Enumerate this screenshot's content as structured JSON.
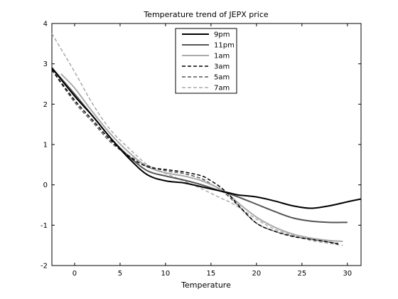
{
  "chart_data": {
    "type": "line",
    "title": "Temperature trend of JEPX price",
    "xlabel": "Temperature",
    "ylabel": "",
    "xlim": [
      -2.5,
      31.5
    ],
    "ylim": [
      -2,
      4
    ],
    "xticks": [
      0,
      5,
      10,
      15,
      20,
      25,
      30
    ],
    "yticks": [
      -2,
      -1,
      0,
      1,
      2,
      3,
      4
    ],
    "grid": false,
    "legend_position": "top-center",
    "series": [
      {
        "name": "9pm",
        "color": "#000000",
        "dash": "solid",
        "width": 2,
        "x": [
          -2.5,
          0,
          2,
          4,
          6,
          8,
          10,
          12,
          14,
          16,
          17,
          18,
          20,
          22,
          24,
          26,
          28,
          30,
          31.5
        ],
        "y": [
          2.9,
          2.2,
          1.7,
          1.15,
          0.65,
          0.25,
          0.1,
          0.05,
          -0.05,
          -0.15,
          -0.2,
          -0.25,
          -0.3,
          -0.4,
          -0.52,
          -0.58,
          -0.52,
          -0.42,
          -0.35
        ]
      },
      {
        "name": "11pm",
        "color": "#555555",
        "dash": "solid",
        "width": 2,
        "x": [
          -2.5,
          0,
          2,
          4,
          6,
          8,
          10,
          12,
          14,
          16,
          17,
          18,
          20,
          22,
          24,
          26,
          28,
          30
        ],
        "y": [
          2.9,
          2.25,
          1.7,
          1.15,
          0.7,
          0.35,
          0.22,
          0.12,
          0.0,
          -0.15,
          -0.22,
          -0.3,
          -0.48,
          -0.66,
          -0.82,
          -0.9,
          -0.93,
          -0.93
        ]
      },
      {
        "name": "1am",
        "color": "#aaaaaa",
        "dash": "solid",
        "width": 2,
        "x": [
          -1.5,
          0,
          2,
          4,
          6,
          8,
          10,
          12,
          14,
          16,
          17,
          18,
          20,
          22,
          24,
          26,
          28,
          29.5
        ],
        "y": [
          2.75,
          2.4,
          1.8,
          1.25,
          0.8,
          0.45,
          0.3,
          0.22,
          0.1,
          -0.1,
          -0.25,
          -0.45,
          -0.8,
          -1.05,
          -1.22,
          -1.32,
          -1.38,
          -1.4
        ]
      },
      {
        "name": "3am",
        "color": "#000000",
        "dash": "5,3",
        "width": 1.5,
        "x": [
          -2.5,
          0,
          2,
          4,
          6,
          8,
          10,
          12,
          14,
          15,
          16,
          17,
          18,
          20,
          22,
          24,
          26,
          28,
          29
        ],
        "y": [
          2.85,
          2.1,
          1.6,
          1.1,
          0.7,
          0.45,
          0.38,
          0.32,
          0.22,
          0.1,
          -0.05,
          -0.25,
          -0.5,
          -0.95,
          -1.15,
          -1.28,
          -1.35,
          -1.42,
          -1.47
        ]
      },
      {
        "name": "5am",
        "color": "#555555",
        "dash": "5,3",
        "width": 1.5,
        "x": [
          -2.5,
          0,
          2,
          4,
          6,
          8,
          10,
          12,
          14,
          15,
          16,
          17,
          18,
          20,
          22,
          24,
          26,
          28,
          29
        ],
        "y": [
          2.85,
          2.05,
          1.55,
          1.05,
          0.72,
          0.48,
          0.35,
          0.28,
          0.15,
          0.02,
          -0.12,
          -0.3,
          -0.52,
          -0.95,
          -1.15,
          -1.27,
          -1.35,
          -1.42,
          -1.45
        ]
      },
      {
        "name": "7am",
        "color": "#aaaaaa",
        "dash": "5,3",
        "width": 1.5,
        "x": [
          -2.5,
          0,
          2,
          4,
          6,
          8,
          10,
          12,
          14,
          16,
          17,
          18,
          20,
          22,
          24,
          26,
          28,
          29.5
        ],
        "y": [
          3.75,
          2.8,
          2.0,
          1.35,
          0.9,
          0.5,
          0.28,
          0.1,
          -0.1,
          -0.32,
          -0.42,
          -0.55,
          -0.85,
          -1.1,
          -1.25,
          -1.38,
          -1.45,
          -1.5
        ]
      }
    ]
  }
}
